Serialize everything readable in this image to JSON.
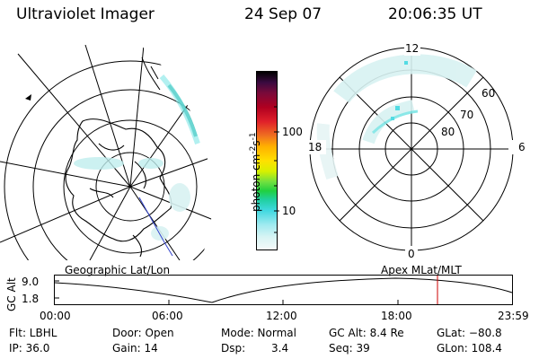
{
  "header": {
    "instrument": "Ultraviolet Imager",
    "date": "24 Sep 07",
    "time": "20:06:35 UT"
  },
  "colorbar": {
    "unit_prefix": "photon cm",
    "unit_exp1": "-2",
    "unit_mid": "s",
    "unit_exp2": "-1",
    "ticks": [
      "100",
      "10"
    ]
  },
  "left_map": {
    "label": "Geographic Lat/Lon"
  },
  "right_map": {
    "label": "Apex  MLat/MLT",
    "mlt_labels": [
      "12",
      "18",
      "6",
      "0"
    ],
    "lat_labels": [
      "60",
      "70",
      "80"
    ]
  },
  "altitude_plot": {
    "ylabel": "GC Alt",
    "yticks": [
      "9.0",
      "1.8"
    ],
    "xticks": [
      "00:00",
      "06:00",
      "12:00",
      "18:00",
      "23:59"
    ],
    "marker_color": "#cc0000"
  },
  "info": {
    "flt": "Flt: LBHL",
    "ip": "IP: 36.0",
    "door": "Door: Open",
    "gain": "Gain: 14",
    "mode": "Mode: Normal",
    "dsp_label": "Dsp:",
    "dsp_value": "3.4",
    "gc_alt": "GC Alt: 8.4 Re",
    "seq": "Seq: 39",
    "glat": "GLat: −80.8",
    "glon": "GLon: 108.4"
  },
  "colors": {
    "aurora_cyan": "#7fe6e6",
    "aurora_light": "#d8f2f2",
    "aurora_teal": "#2fb3a8"
  }
}
